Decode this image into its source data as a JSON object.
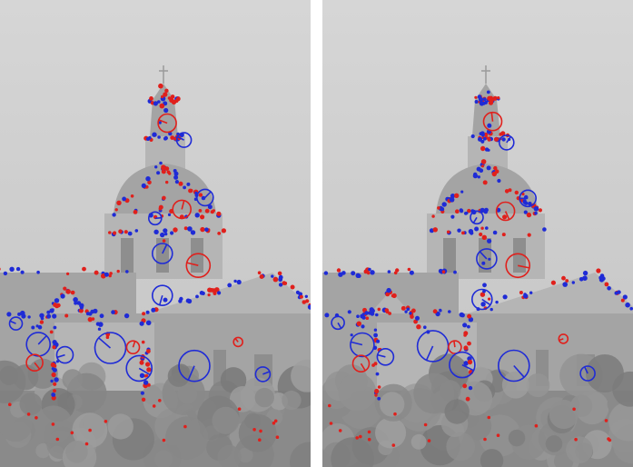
{
  "figure": {
    "description_visible_text": "",
    "panels": [
      {
        "id": "left"
      },
      {
        "id": "right"
      }
    ],
    "colors": {
      "sky_top": "#d6d6d6",
      "sky_bottom": "#c3c3c3",
      "building_light": "#b5b5b5",
      "building_mid": "#a4a4a4",
      "building_dark": "#8e8e8e",
      "trees": "#8a8a8a",
      "feature_blue": "#1f2bd6",
      "feature_red": "#e0201c"
    }
  }
}
